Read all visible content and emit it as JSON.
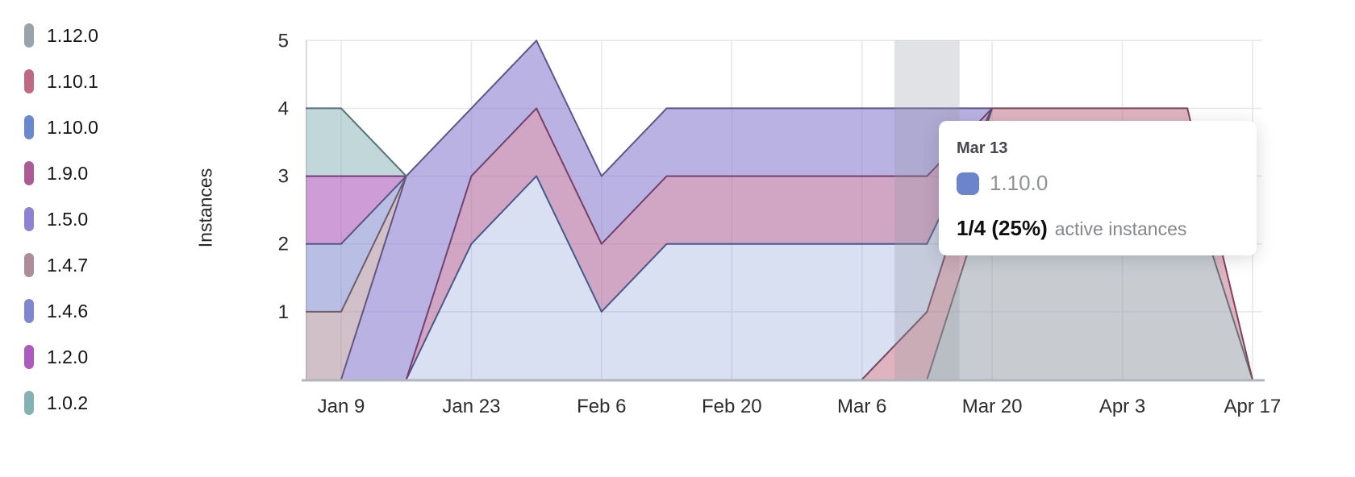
{
  "y_axis": {
    "title": "Instances"
  },
  "tooltip": {
    "date": "Mar 13",
    "series": "1.10.0",
    "marker_color": "#6b85cc",
    "value": "1/4 (25%)",
    "value_suffix": "active instances"
  },
  "chart_data": {
    "type": "area",
    "stacked": true,
    "title": "",
    "xlabel": "",
    "ylabel": "Instances",
    "x": [
      "Jan 2",
      "Jan 9",
      "Jan 16",
      "Jan 23",
      "Jan 30",
      "Feb 6",
      "Feb 13",
      "Feb 20",
      "Feb 27",
      "Mar 6",
      "Mar 13",
      "Mar 20",
      "Mar 27",
      "Apr 3",
      "Apr 10",
      "Apr 17"
    ],
    "x_tick_labels": [
      "Jan 9",
      "Jan 23",
      "Feb 6",
      "Feb 20",
      "Mar 6",
      "Mar 20",
      "Apr 3",
      "Apr 17"
    ],
    "x_tick_indices": [
      1,
      3,
      5,
      7,
      9,
      11,
      13,
      15
    ],
    "yticks": [
      1,
      2,
      3,
      4,
      5
    ],
    "ylim": [
      0,
      5
    ],
    "grid": true,
    "legend_position": "left",
    "hover_index": 10,
    "hover_band_color": "rgba(148,152,160,0.28)",
    "grid_color": "#e7e7ea",
    "axis_line_color": "#b1b5bd",
    "left_axis_color": "#cdced2",
    "tick_label_color": "#2d2d2d",
    "series": [
      {
        "name": "1.12.0",
        "color": "#9aa3ab",
        "stroke": "#687078",
        "fill_alpha": 0.55,
        "values": [
          0,
          0,
          0,
          0,
          0,
          0,
          0,
          0,
          0,
          0,
          0,
          3,
          3,
          3,
          3,
          0
        ]
      },
      {
        "name": "1.10.1",
        "color": "#bf6a82",
        "stroke": "#7d4558",
        "fill_alpha": 0.5,
        "values": [
          0,
          0,
          0,
          0,
          0,
          0,
          0,
          0,
          0,
          0,
          1,
          1,
          1,
          1,
          1,
          0
        ]
      },
      {
        "name": "1.10.0",
        "color": "#6988cd",
        "stroke": "#46598c",
        "fill_alpha": 0.26,
        "values": [
          0,
          0,
          0,
          2,
          3,
          1,
          2,
          2,
          2,
          2,
          1,
          0,
          0,
          0,
          0,
          0
        ]
      },
      {
        "name": "1.9.0",
        "color": "#ab5c96",
        "stroke": "#744069",
        "fill_alpha": 0.55,
        "values": [
          0,
          0,
          0,
          1,
          1,
          1,
          1,
          1,
          1,
          1,
          1,
          0,
          0,
          0,
          0,
          0
        ]
      },
      {
        "name": "1.5.0",
        "color": "#8f82d2",
        "stroke": "#5e568a",
        "fill_alpha": 0.62,
        "values": [
          0,
          0,
          3,
          1,
          1,
          1,
          1,
          1,
          1,
          1,
          1,
          0,
          0,
          0,
          0,
          0
        ]
      },
      {
        "name": "1.4.7",
        "color": "#ac8d99",
        "stroke": "#705c64",
        "fill_alpha": 0.55,
        "values": [
          1,
          1,
          0,
          0,
          0,
          0,
          0,
          0,
          0,
          0,
          0,
          0,
          0,
          0,
          0,
          0
        ]
      },
      {
        "name": "1.4.6",
        "color": "#7e88ce",
        "stroke": "#525986",
        "fill_alpha": 0.55,
        "values": [
          1,
          1,
          0,
          0,
          0,
          0,
          0,
          0,
          0,
          0,
          0,
          0,
          0,
          0,
          0,
          0
        ]
      },
      {
        "name": "1.2.0",
        "color": "#ad5abc",
        "stroke": "#713b7a",
        "fill_alpha": 0.6,
        "values": [
          1,
          1,
          0,
          0,
          0,
          0,
          0,
          0,
          0,
          0,
          0,
          0,
          0,
          0,
          0,
          0
        ]
      },
      {
        "name": "1.0.2",
        "color": "#85b0b4",
        "stroke": "#567275",
        "fill_alpha": 0.5,
        "values": [
          1,
          1,
          0,
          0,
          0,
          0,
          0,
          0,
          0,
          0,
          0,
          0,
          0,
          0,
          0,
          0
        ]
      }
    ]
  }
}
